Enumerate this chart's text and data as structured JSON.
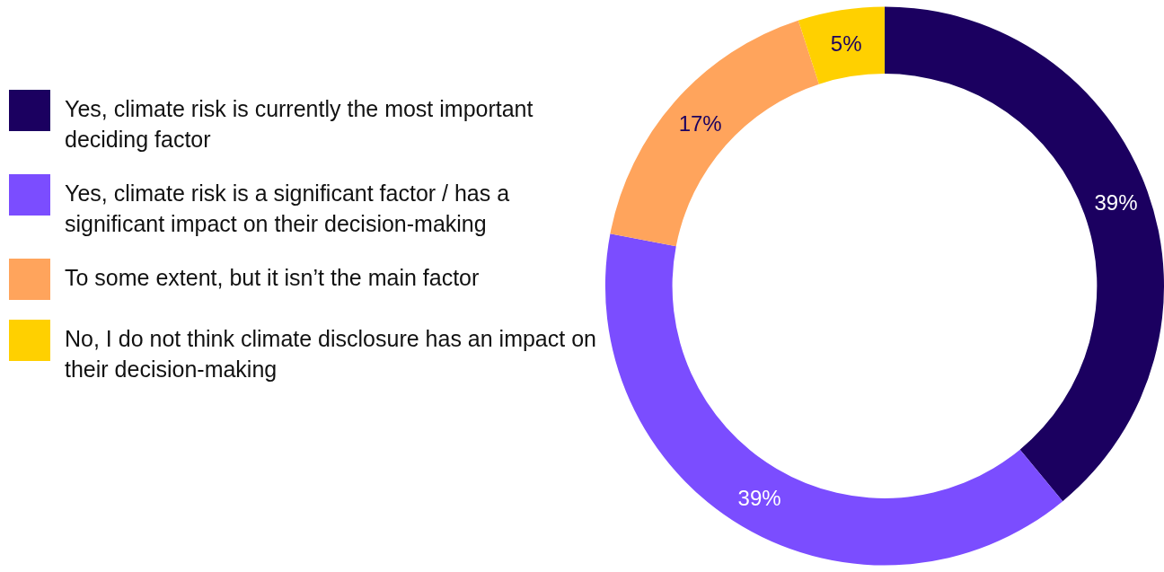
{
  "chart_data": {
    "type": "donut",
    "categories": [
      "Yes, climate risk is currently the most important deciding factor",
      "Yes, climate risk is a significant factor / has a significant impact on their decision-making",
      "To some extent, but it isn’t the main factor",
      "No, I do not think climate disclosure has an impact on their decision-making"
    ],
    "values": [
      39,
      39,
      17,
      5
    ],
    "colors": [
      "#1b0060",
      "#7b4dff",
      "#ffa45c",
      "#ffd000"
    ],
    "value_labels": [
      "39%",
      "39%",
      "17%",
      "5%"
    ],
    "legend": "left"
  }
}
